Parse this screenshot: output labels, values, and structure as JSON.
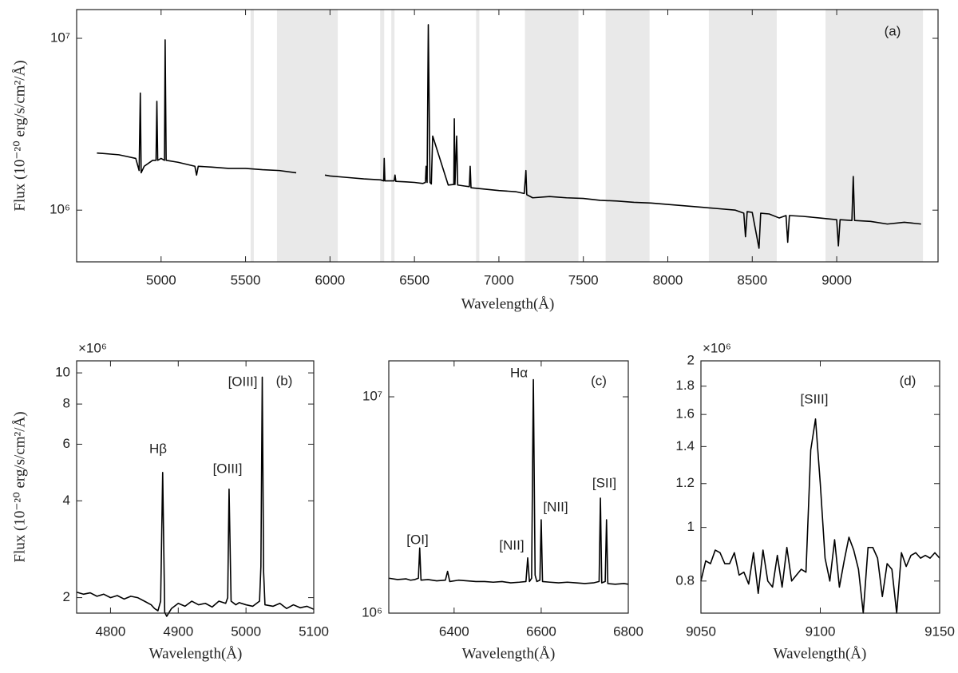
{
  "chart_data": [
    {
      "type": "line",
      "label": "(a)",
      "xlabel": "Wavelength(Å)",
      "ylabel": "Flux (10⁻²⁰ erg/s/cm²/Å)",
      "log_y": true,
      "color": "#000000",
      "shade_color": "#e9e9e9",
      "xlim": [
        4500,
        9600
      ],
      "ylim": [
        500000,
        14700000
      ],
      "xticks": [
        5000,
        5500,
        6000,
        6500,
        7000,
        7500,
        8000,
        8500,
        9000
      ],
      "yticks": [
        {
          "value": 1000000,
          "label": "10⁶"
        },
        {
          "value": 10000000,
          "label": "10⁷"
        }
      ],
      "shaded_regions": [
        [
          5530,
          5549
        ],
        [
          5686,
          6046
        ],
        [
          6297,
          6321
        ],
        [
          6363,
          6382
        ],
        [
          6865,
          6884
        ],
        [
          7154,
          7471
        ],
        [
          7632,
          7892
        ],
        [
          8243,
          8645
        ],
        [
          8934,
          9511
        ]
      ],
      "x": [
        4620,
        4700,
        4750,
        4800,
        4850,
        4870,
        4877,
        4882,
        4900,
        4950,
        4970,
        4975,
        4980,
        5000,
        5020,
        5024,
        5030,
        5100,
        5200,
        5210,
        5220,
        5300,
        5400,
        5500,
        5600,
        5700,
        5800,
        5880,
        5970,
        6000,
        6100,
        6200,
        6300,
        6318,
        6321,
        6325,
        6380,
        6385,
        6390,
        6450,
        6500,
        6550,
        6565,
        6569,
        6575,
        6582,
        6592,
        6600,
        6608,
        6700,
        6733,
        6736,
        6740,
        6750,
        6756,
        6800,
        6825,
        6830,
        6835,
        6900,
        7000,
        7100,
        7150,
        7160,
        7165,
        7200,
        7300,
        7400,
        7500,
        7600,
        7700,
        7800,
        7900,
        8000,
        8100,
        8200,
        8300,
        8400,
        8450,
        8460,
        8470,
        8500,
        8540,
        8550,
        8600,
        8660,
        8700,
        8710,
        8720,
        8800,
        8900,
        9000,
        9010,
        9020,
        9090,
        9098,
        9106,
        9200,
        9300,
        9400,
        9500
      ],
      "values": [
        2150000,
        2120000,
        2100000,
        2050000,
        2000000,
        1700000,
        4800000,
        1650000,
        1800000,
        1950000,
        1950000,
        4300000,
        1950000,
        2000000,
        1950000,
        9800000,
        1950000,
        1900000,
        1800000,
        1600000,
        1800000,
        1780000,
        1750000,
        1750000,
        1720000,
        1700000,
        1650000,
        null,
        1600000,
        1580000,
        1550000,
        1520000,
        1500000,
        1480000,
        2000000,
        1480000,
        1480000,
        1600000,
        1470000,
        1460000,
        1450000,
        1430000,
        1450000,
        1800000,
        1450000,
        12000000,
        1450000,
        1420000,
        2700000,
        1400000,
        1410000,
        3400000,
        1410000,
        2700000,
        1400000,
        1380000,
        1370000,
        1800000,
        1350000,
        1330000,
        1300000,
        1280000,
        1250000,
        1700000,
        1230000,
        1180000,
        1200000,
        1180000,
        1170000,
        1140000,
        1130000,
        1110000,
        1100000,
        1080000,
        1060000,
        1040000,
        1020000,
        1000000,
        960000,
        700000,
        980000,
        970000,
        600000,
        960000,
        950000,
        900000,
        930000,
        650000,
        930000,
        920000,
        900000,
        880000,
        620000,
        880000,
        870000,
        1570000,
        870000,
        860000,
        830000,
        850000,
        830000
      ]
    },
    {
      "type": "line",
      "label": "(b)",
      "xlabel": "Wavelength(Å)",
      "ylabel": "Flux (10⁻²⁰ erg/s/cm²/Å)",
      "multiplier": "×10⁶",
      "log_y": true,
      "color": "#000000",
      "xlim": [
        4750,
        5100
      ],
      "ylim": [
        1.79,
        10.9
      ],
      "xticks": [
        4800,
        4900,
        5000,
        5100
      ],
      "yticks": [
        2,
        4,
        6,
        8,
        10
      ],
      "annotations": [
        "Hβ",
        "[OIII]",
        "[OIII]"
      ],
      "x": [
        4750,
        4760,
        4770,
        4780,
        4790,
        4800,
        4810,
        4820,
        4830,
        4840,
        4850,
        4860,
        4865,
        4870,
        4874,
        4877,
        4880,
        4883,
        4890,
        4900,
        4910,
        4920,
        4930,
        4940,
        4950,
        4960,
        4970,
        4973,
        4975,
        4978,
        4985,
        4990,
        5000,
        5010,
        5020,
        5022,
        5024,
        5026,
        5028,
        5040,
        5050,
        5060,
        5070,
        5080,
        5090,
        5100
      ],
      "values": [
        2.08,
        2.05,
        2.07,
        2.02,
        2.05,
        2.0,
        2.03,
        1.98,
        2.02,
        2.0,
        1.95,
        1.9,
        1.85,
        1.82,
        1.95,
        4.9,
        1.8,
        1.75,
        1.85,
        1.92,
        1.88,
        1.95,
        1.9,
        1.92,
        1.87,
        1.95,
        1.92,
        2.0,
        4.35,
        1.95,
        1.9,
        1.93,
        1.9,
        1.88,
        1.95,
        2.5,
        9.7,
        2.4,
        1.9,
        1.88,
        1.92,
        1.85,
        1.9,
        1.86,
        1.88,
        1.84
      ]
    },
    {
      "type": "line",
      "label": "(c)",
      "xlabel": "Wavelength(Å)",
      "log_y": true,
      "color": "#000000",
      "xlim": [
        6250,
        6800
      ],
      "ylim": [
        1000000,
        14660000
      ],
      "xticks": [
        6400,
        6600,
        6800
      ],
      "yticks": [
        {
          "value": 1000000,
          "label": "10⁶"
        },
        {
          "value": 10000000,
          "label": "10⁷"
        }
      ],
      "annotations": [
        "[OI]",
        "[NII]",
        "Hα",
        "[NII]",
        "[SII]"
      ],
      "x": [
        6250,
        6270,
        6290,
        6300,
        6310,
        6318,
        6321,
        6324,
        6340,
        6360,
        6380,
        6385,
        6390,
        6410,
        6430,
        6450,
        6470,
        6490,
        6510,
        6530,
        6550,
        6565,
        6569,
        6573,
        6578,
        6582,
        6586,
        6590,
        6597,
        6600,
        6603,
        6620,
        6640,
        6660,
        6680,
        6700,
        6720,
        6733,
        6736,
        6739,
        6747,
        6750,
        6753,
        6770,
        6790,
        6800
      ],
      "values": [
        1450000,
        1430000,
        1440000,
        1420000,
        1430000,
        1450000,
        2000000,
        1420000,
        1430000,
        1410000,
        1420000,
        1560000,
        1400000,
        1420000,
        1410000,
        1400000,
        1400000,
        1390000,
        1400000,
        1380000,
        1390000,
        1400000,
        1800000,
        1400000,
        1450000,
        12000000,
        1500000,
        1400000,
        1420000,
        2700000,
        1400000,
        1390000,
        1380000,
        1390000,
        1380000,
        1370000,
        1380000,
        1400000,
        3400000,
        1380000,
        1400000,
        2700000,
        1370000,
        1360000,
        1370000,
        1360000
      ]
    },
    {
      "type": "line",
      "label": "(d)",
      "xlabel": "Wavelength(Å)",
      "multiplier": "×10⁶",
      "log_y": true,
      "color": "#000000",
      "xlim": [
        9050,
        9150
      ],
      "ylim": [
        0.7,
        2
      ],
      "xticks": [
        9050,
        9100,
        9150
      ],
      "yticks": [
        0.8,
        1,
        1.2,
        1.4,
        1.6,
        1.8,
        2
      ],
      "annotations": [
        "[SIII]"
      ],
      "x": [
        9050,
        9052,
        9054,
        9056,
        9058,
        9060,
        9062,
        9064,
        9066,
        9068,
        9070,
        9072,
        9074,
        9076,
        9078,
        9080,
        9082,
        9084,
        9086,
        9088,
        9090,
        9092,
        9094,
        9096,
        9098,
        9100,
        9102,
        9104,
        9106,
        9108,
        9110,
        9112,
        9114,
        9116,
        9118,
        9120,
        9122,
        9124,
        9126,
        9128,
        9130,
        9132,
        9134,
        9136,
        9138,
        9140,
        9142,
        9144,
        9146,
        9148,
        9150
      ],
      "values": [
        0.8,
        0.87,
        0.86,
        0.91,
        0.9,
        0.86,
        0.86,
        0.9,
        0.82,
        0.83,
        0.79,
        0.9,
        0.76,
        0.91,
        0.8,
        0.78,
        0.89,
        0.78,
        0.92,
        0.8,
        0.82,
        0.84,
        0.83,
        1.38,
        1.57,
        1.2,
        0.88,
        0.8,
        0.95,
        0.78,
        0.87,
        0.96,
        0.91,
        0.84,
        0.7,
        0.92,
        0.92,
        0.88,
        0.75,
        0.86,
        0.84,
        0.7,
        0.9,
        0.85,
        0.89,
        0.9,
        0.88,
        0.89,
        0.88,
        0.9,
        0.88
      ]
    }
  ]
}
